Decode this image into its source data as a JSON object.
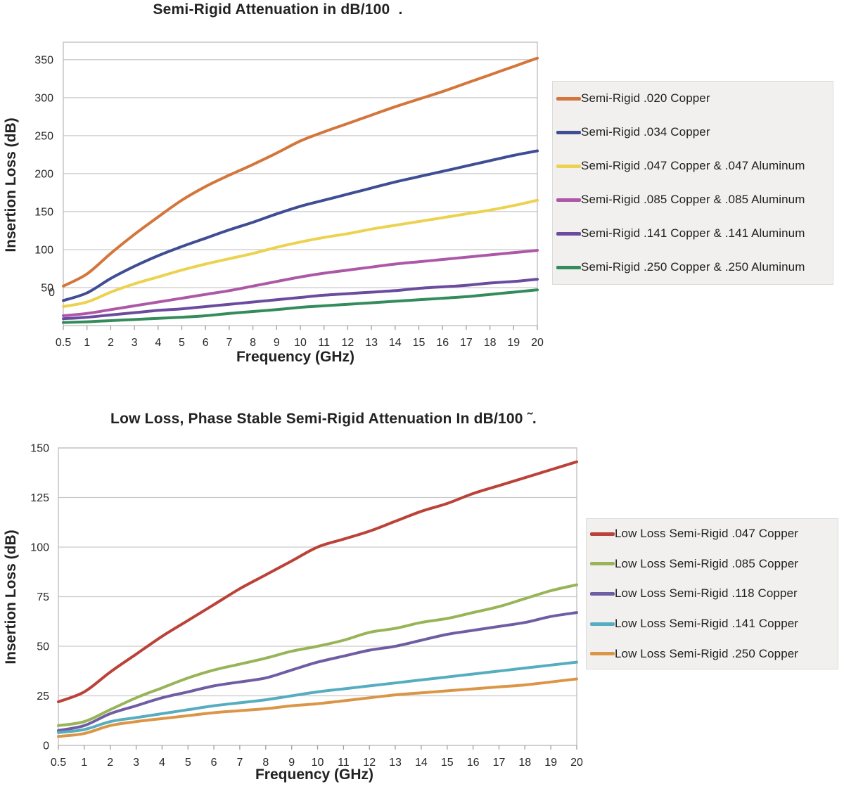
{
  "chart_data": [
    {
      "type": "line",
      "title": "Semi-Rigid Attenuation in dB/100  .",
      "xlabel": "Frequency (GHz)",
      "ylabel": "Insertion Loss (dB)",
      "x_categories": [
        "0.5",
        "1",
        "2",
        "3",
        "4",
        "5",
        "6",
        "7",
        "8",
        "9",
        "10",
        "11",
        "12",
        "13",
        "14",
        "15",
        "16",
        "17",
        "18",
        "19",
        "20"
      ],
      "ylim": [
        0,
        373
      ],
      "yticks": [
        350,
        300,
        250,
        200,
        150,
        100,
        50
      ],
      "zero_tick_label": "0",
      "grid": "horizontal",
      "legend_position": "right",
      "series": [
        {
          "name": "Semi-Rigid .020 Copper",
          "color": "#d4763b",
          "values": [
            52,
            68,
            95,
            120,
            143,
            165,
            183,
            198,
            212,
            227,
            243,
            255,
            266,
            277,
            288,
            298,
            308,
            319,
            330,
            341,
            352
          ]
        },
        {
          "name": "Semi-Rigid .034 Copper",
          "color": "#3f4d94",
          "values": [
            33,
            43,
            62,
            78,
            92,
            104,
            115,
            126,
            136,
            147,
            157,
            165,
            173,
            181,
            189,
            196,
            203,
            210,
            217,
            224,
            230
          ]
        },
        {
          "name": "Semi-Rigid .047 Copper & .047 Aluminum",
          "color": "#ecd24f",
          "values": [
            25,
            31,
            44,
            55,
            64,
            73,
            81,
            88,
            95,
            103,
            110,
            116,
            121,
            127,
            132,
            137,
            142,
            147,
            152,
            158,
            165
          ]
        },
        {
          "name": "Semi-Rigid .085 Copper & .085 Aluminum",
          "color": "#ac58a6",
          "values": [
            13,
            16,
            21,
            26,
            31,
            36,
            41,
            46,
            52,
            58,
            64,
            69,
            73,
            77,
            81,
            84,
            87,
            90,
            93,
            96,
            99
          ]
        },
        {
          "name": "Semi-Rigid .141 Copper & .141 Aluminum",
          "color": "#6a4b9e",
          "values": [
            9,
            11,
            14,
            17,
            20,
            22,
            25,
            28,
            31,
            34,
            37,
            40,
            42,
            44,
            46,
            49,
            51,
            53,
            56,
            58,
            61
          ]
        },
        {
          "name": "Semi-Rigid .250 Copper & .250 Aluminum",
          "color": "#348b5c",
          "values": [
            4,
            5,
            6.5,
            8,
            9.5,
            11,
            13,
            16,
            18.5,
            21,
            24,
            26,
            28,
            30,
            32,
            34,
            36,
            38,
            41,
            44,
            47
          ]
        }
      ]
    },
    {
      "type": "line",
      "title": "Low Loss, Phase Stable Semi-Rigid Attenuation In dB/100 ˜.",
      "xlabel": "Frequency (GHz)",
      "ylabel": "Insertion Loss (dB)",
      "x_categories": [
        "0.5",
        "1",
        "2",
        "3",
        "4",
        "5",
        "6",
        "7",
        "8",
        "9",
        "10",
        "11",
        "12",
        "13",
        "14",
        "15",
        "16",
        "17",
        "18",
        "19",
        "20"
      ],
      "ylim": [
        0,
        150
      ],
      "yticks": [
        150,
        125,
        100,
        75,
        50,
        25,
        0
      ],
      "grid": "horizontal",
      "legend_position": "right",
      "series": [
        {
          "name": "Low Loss Semi-Rigid .047 Copper",
          "color": "#bb4238",
          "values": [
            22,
            27,
            37,
            46,
            55,
            63,
            71,
            79,
            86,
            93,
            100,
            104,
            108,
            113,
            118,
            122,
            127,
            131,
            135,
            139,
            143
          ]
        },
        {
          "name": "Low Loss Semi-Rigid .085 Copper",
          "color": "#98b457",
          "values": [
            10,
            12,
            18,
            24,
            29,
            34,
            38,
            41,
            44,
            47.5,
            50,
            53,
            57,
            59,
            62,
            64,
            67,
            70,
            74,
            78,
            81
          ]
        },
        {
          "name": "Low Loss Semi-Rigid .118 Copper",
          "color": "#6f5da3",
          "values": [
            7.5,
            10,
            16,
            20,
            24,
            27,
            30,
            32,
            34,
            38,
            42,
            45,
            48,
            50,
            53,
            56,
            58,
            60,
            62,
            65,
            67
          ]
        },
        {
          "name": "Low Loss Semi-Rigid .141 Copper",
          "color": "#55adbf",
          "values": [
            6.5,
            8,
            12,
            14,
            16,
            18,
            20,
            21.5,
            23,
            25,
            27,
            28.5,
            30,
            31.5,
            33,
            34.5,
            36,
            37.5,
            39,
            40.5,
            42
          ]
        },
        {
          "name": "Low Loss Semi-Rigid .250 Copper",
          "color": "#db9546",
          "values": [
            4.5,
            6,
            10,
            12,
            13.5,
            15,
            16.5,
            17.5,
            18.5,
            20,
            21,
            22.5,
            24,
            25.5,
            26.5,
            27.5,
            28.5,
            29.5,
            30.5,
            32,
            33.5
          ]
        }
      ]
    }
  ]
}
